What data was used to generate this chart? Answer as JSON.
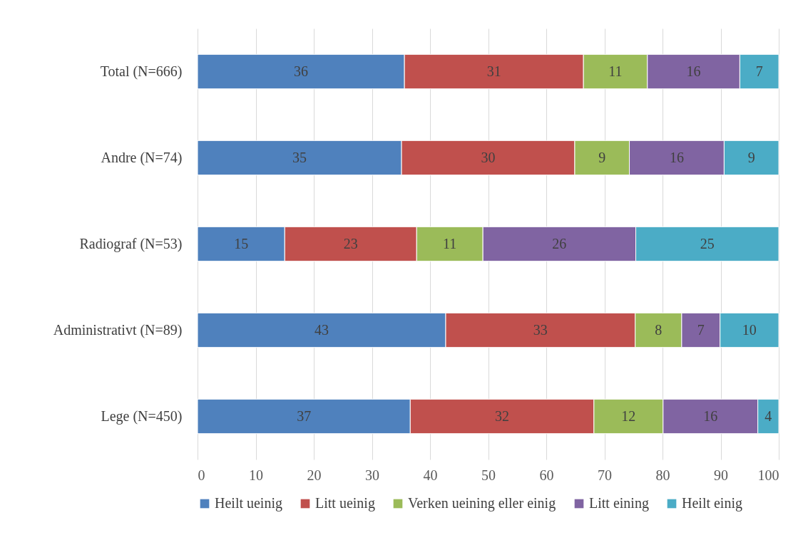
{
  "chart_data": {
    "type": "bar",
    "orientation": "horizontal",
    "stacked": true,
    "categories": [
      "Total (N=666)",
      "Andre (N=74)",
      "Radiograf (N=53)",
      "Administrativt (N=89)",
      "Lege (N=450)"
    ],
    "series": [
      {
        "name": "Heilt ueinig",
        "color": "#4f81bd",
        "values": [
          35.6,
          35.1,
          15.0,
          42.7,
          36.6
        ],
        "value_labels": [
          "36",
          "35",
          "15",
          "43",
          "37"
        ]
      },
      {
        "name": "Litt ueinig",
        "color": "#c0504d",
        "values": [
          30.8,
          29.8,
          22.7,
          32.6,
          31.6
        ],
        "value_labels": [
          "31",
          "30",
          "23",
          "33",
          "32"
        ]
      },
      {
        "name": "Verken ueining eller einig",
        "color": "#9bbb59",
        "values": [
          11.0,
          9.4,
          11.4,
          8.0,
          11.9
        ],
        "value_labels": [
          "11",
          "9",
          "11",
          "8",
          "12"
        ]
      },
      {
        "name": "Litt eining",
        "color": "#8064a2",
        "values": [
          15.9,
          16.3,
          26.3,
          6.6,
          16.3
        ],
        "value_labels": [
          "16",
          "16",
          "26",
          "7",
          "16"
        ]
      },
      {
        "name": "Heilt einig",
        "color": "#4bacc6",
        "values": [
          6.7,
          9.4,
          24.6,
          10.1,
          3.6
        ],
        "value_labels": [
          "7",
          "9",
          "25",
          "10",
          "4"
        ]
      }
    ],
    "xlim": [
      0,
      100
    ],
    "xticks": [
      0,
      10,
      20,
      30,
      40,
      50,
      60,
      70,
      80,
      90,
      100
    ],
    "grid": "x",
    "legend": "bottom"
  }
}
